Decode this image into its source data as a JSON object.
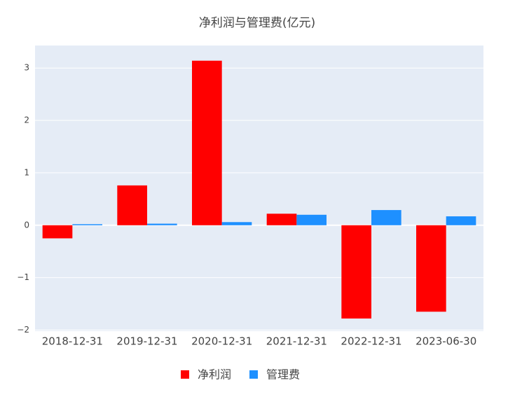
{
  "chart_data": {
    "type": "bar",
    "title": "净利润与管理费(亿元)",
    "categories": [
      "2018-12-31",
      "2019-12-31",
      "2020-12-31",
      "2021-12-31",
      "2022-12-31",
      "2023-06-30"
    ],
    "series": [
      {
        "name": "净利润",
        "color": "#ff0000",
        "values": [
          -0.25,
          0.76,
          3.14,
          0.22,
          -1.78,
          -1.65
        ]
      },
      {
        "name": "管理费",
        "color": "#1e90ff",
        "values": [
          0.02,
          0.03,
          0.06,
          0.2,
          0.29,
          0.17
        ]
      }
    ],
    "ylim": [
      -2.02,
      3.43
    ],
    "yticks": [
      {
        "value": -2,
        "label": "−2"
      },
      {
        "value": -1,
        "label": "−1"
      },
      0,
      1,
      2,
      3
    ],
    "grid": true
  }
}
